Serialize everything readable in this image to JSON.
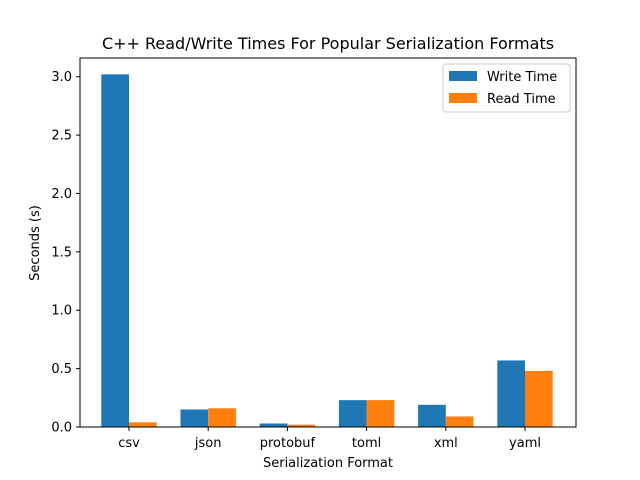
{
  "chart_data": {
    "type": "bar",
    "title": "C++ Read/Write Times For Popular Serialization Formats",
    "xlabel": "Serialization Format",
    "ylabel": "Seconds (s)",
    "categories": [
      "csv",
      "json",
      "protobuf",
      "toml",
      "xml",
      "yaml"
    ],
    "series": [
      {
        "name": "Write Time",
        "color": "#1f77b4",
        "values": [
          3.02,
          0.15,
          0.03,
          0.23,
          0.19,
          0.57
        ]
      },
      {
        "name": "Read Time",
        "color": "#ff7f0e",
        "values": [
          0.04,
          0.16,
          0.02,
          0.23,
          0.09,
          0.48
        ]
      }
    ],
    "ylim": [
      0,
      3.16
    ],
    "yticks": [
      "0.0",
      "0.5",
      "1.0",
      "1.5",
      "2.0",
      "2.5",
      "3.0"
    ],
    "grid": false,
    "legend": "top-right"
  }
}
